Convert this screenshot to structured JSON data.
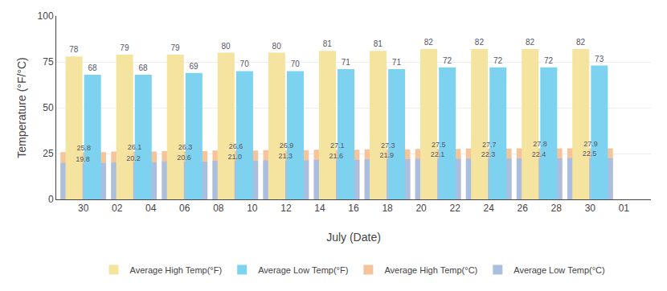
{
  "chart_data": {
    "type": "bar",
    "xlabel": "July (Date)",
    "ylabel": "Temperature (°F/°C)",
    "categories": [
      "30",
      null,
      "02",
      null,
      "04",
      null,
      "06",
      null,
      "08",
      null,
      "10",
      null,
      "12",
      null,
      "14",
      null,
      "16",
      null,
      "18",
      null,
      "20",
      null,
      "22",
      null,
      "24",
      null,
      "26",
      null,
      "28",
      null,
      "30",
      null,
      "01"
    ],
    "series": [
      {
        "name": "Average High Temp(°F)",
        "color": "#F5E4A0",
        "values": [
          78,
          null,
          null,
          79,
          null,
          null,
          79,
          null,
          null,
          80,
          null,
          null,
          80,
          null,
          null,
          81,
          null,
          null,
          81,
          null,
          null,
          82,
          null,
          null,
          82,
          null,
          null,
          82,
          null,
          null,
          82,
          null,
          null
        ]
      },
      {
        "name": "Average Low Temp(°F)",
        "color": "#7DD3EF",
        "values": [
          68,
          null,
          null,
          68,
          null,
          null,
          69,
          null,
          null,
          70,
          null,
          null,
          70,
          null,
          null,
          71,
          null,
          null,
          71,
          null,
          null,
          72,
          null,
          null,
          72,
          null,
          null,
          72,
          null,
          null,
          73,
          null,
          null
        ]
      },
      {
        "name": "Average High Temp(°C)",
        "color": "#F5C49A",
        "values": [
          25.8,
          null,
          null,
          26.1,
          null,
          null,
          26.3,
          null,
          null,
          26.6,
          null,
          null,
          26.9,
          null,
          null,
          27.1,
          null,
          null,
          27.3,
          null,
          null,
          27.5,
          null,
          null,
          27.7,
          null,
          null,
          27.8,
          null,
          null,
          27.9,
          null,
          null
        ]
      },
      {
        "name": "Average Low Temp(°C)",
        "color": "#AABFE0",
        "values": [
          19.8,
          null,
          null,
          20.2,
          null,
          null,
          20.6,
          null,
          null,
          21.0,
          null,
          null,
          21.3,
          null,
          null,
          21.6,
          null,
          null,
          21.9,
          null,
          null,
          22.1,
          null,
          null,
          22.3,
          null,
          null,
          22.4,
          null,
          null,
          22.5,
          null,
          null
        ],
        "value_labels": [
          "19.8",
          null,
          null,
          "20.2",
          null,
          null,
          "20.6",
          null,
          null,
          "21.0",
          null,
          null,
          "21.3",
          null,
          null,
          "21.6",
          null,
          null,
          "21.9",
          null,
          null,
          "22.1",
          null,
          null,
          "22.3",
          null,
          null,
          "22.4",
          null,
          null,
          "22.5",
          null,
          null
        ]
      }
    ],
    "ylim": [
      0,
      100
    ],
    "yticks": [
      0,
      25,
      50,
      75,
      100
    ],
    "grid": true,
    "legend": "bottom",
    "data_labels": true
  }
}
